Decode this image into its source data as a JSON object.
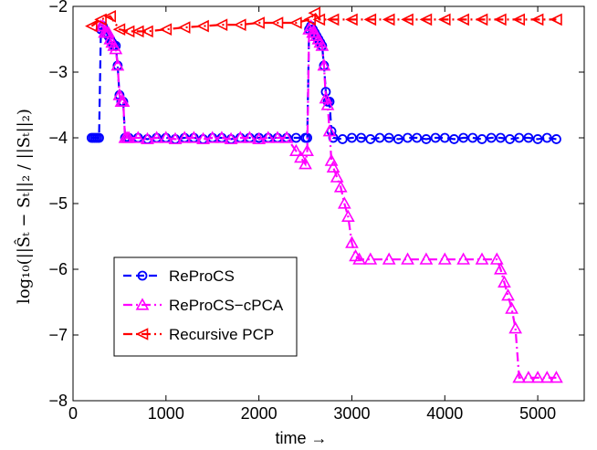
{
  "chart_data": {
    "type": "line",
    "xlabel": "time →",
    "ylabel": "log₁₀(||Ŝₜ − Sₜ||₂ / ||Sₜ||₂)",
    "xlim": [
      0,
      5500
    ],
    "ylim": [
      -8,
      -2
    ],
    "xticks": [
      "0",
      "1000",
      "2000",
      "3000",
      "4000",
      "5000"
    ],
    "yticks": [
      "−2",
      "−3",
      "−4",
      "−5",
      "−6",
      "−7",
      "−8"
    ],
    "grid": false,
    "legend_position": "lower-left",
    "series": [
      {
        "name": "ReProCS",
        "color": "#0000ff",
        "line_style": "dashed",
        "marker": "circle",
        "x": [
          200,
          220,
          240,
          260,
          280,
          300,
          320,
          340,
          360,
          380,
          400,
          420,
          440,
          460,
          480,
          500,
          520,
          540,
          560,
          580,
          600,
          700,
          800,
          900,
          1000,
          1100,
          1200,
          1300,
          1400,
          1500,
          1600,
          1700,
          1800,
          1900,
          2000,
          2100,
          2200,
          2300,
          2400,
          2500,
          2520,
          2540,
          2560,
          2580,
          2600,
          2620,
          2640,
          2660,
          2680,
          2700,
          2720,
          2740,
          2760,
          2780,
          2800,
          2900,
          3000,
          3100,
          3200,
          3300,
          3400,
          3500,
          3600,
          3700,
          3800,
          3900,
          4000,
          4100,
          4200,
          4300,
          4400,
          4500,
          4600,
          4700,
          4800,
          4900,
          5000,
          5100,
          5200
        ],
        "y": [
          -4.0,
          -4.0,
          -4.0,
          -4.0,
          -4.0,
          -2.35,
          -2.3,
          -2.4,
          -2.4,
          -2.45,
          -2.5,
          -2.55,
          -2.6,
          -2.6,
          -2.9,
          -3.35,
          -3.45,
          -3.45,
          -4.0,
          -4.0,
          -4.0,
          -4.0,
          -4.02,
          -4.0,
          -4.0,
          -4.02,
          -4.0,
          -4.0,
          -4.02,
          -4.0,
          -4.0,
          -4.02,
          -4.0,
          -4.0,
          -4.0,
          -4.0,
          -4.0,
          -4.0,
          -4.0,
          -4.0,
          -4.0,
          -2.35,
          -2.3,
          -2.35,
          -2.4,
          -2.45,
          -2.5,
          -2.55,
          -2.6,
          -2.9,
          -3.3,
          -3.45,
          -3.45,
          -3.9,
          -4.0,
          -4.02,
          -4.0,
          -4.0,
          -4.02,
          -4.0,
          -4.0,
          -4.02,
          -4.0,
          -4.0,
          -4.02,
          -4.0,
          -4.0,
          -4.02,
          -4.0,
          -4.0,
          -4.02,
          -4.0,
          -4.0,
          -4.02,
          -4.0,
          -4.0,
          -4.02,
          -4.0,
          -4.02
        ]
      },
      {
        "name": "ReProCS−cPCA",
        "color": "#ff00ff",
        "line_style": "dashdot",
        "marker": "triangle",
        "x": [
          300,
          320,
          340,
          360,
          380,
          400,
          420,
          440,
          460,
          480,
          500,
          520,
          540,
          560,
          580,
          600,
          700,
          800,
          900,
          1000,
          1100,
          1200,
          1300,
          1400,
          1500,
          1600,
          1700,
          1800,
          1900,
          2000,
          2100,
          2200,
          2300,
          2400,
          2450,
          2500,
          2520,
          2540,
          2560,
          2580,
          2600,
          2620,
          2640,
          2660,
          2680,
          2700,
          2720,
          2740,
          2760,
          2780,
          2800,
          2840,
          2880,
          2920,
          2960,
          3000,
          3040,
          3080,
          3200,
          3400,
          3600,
          3800,
          4000,
          4200,
          4400,
          4560,
          4600,
          4640,
          4680,
          4720,
          4760,
          4800,
          4900,
          5000,
          5100,
          5200
        ],
        "y": [
          -2.3,
          -2.3,
          -2.4,
          -2.4,
          -2.4,
          -2.5,
          -2.55,
          -2.6,
          -2.65,
          -2.9,
          -3.35,
          -3.45,
          -3.45,
          -4.0,
          -4.0,
          -4.0,
          -4.0,
          -4.02,
          -4.0,
          -4.0,
          -4.02,
          -4.0,
          -4.0,
          -4.02,
          -4.0,
          -4.0,
          -4.02,
          -4.0,
          -4.0,
          -4.02,
          -4.0,
          -4.0,
          -4.0,
          -4.2,
          -4.3,
          -4.4,
          -4.2,
          -2.35,
          -2.3,
          -2.4,
          -2.4,
          -2.45,
          -2.5,
          -2.55,
          -2.6,
          -2.9,
          -3.4,
          -3.5,
          -3.9,
          -4.35,
          -4.45,
          -4.6,
          -4.75,
          -5.0,
          -5.2,
          -5.6,
          -5.8,
          -5.85,
          -5.85,
          -5.85,
          -5.85,
          -5.85,
          -5.85,
          -5.85,
          -5.85,
          -5.85,
          -6.0,
          -6.2,
          -6.4,
          -6.6,
          -6.9,
          -7.65,
          -7.65,
          -7.65,
          -7.65,
          -7.65
        ]
      },
      {
        "name": "Recursive PCP",
        "color": "#ff0000",
        "line_style": "dashdot",
        "marker": "triangle-left",
        "x": [
          200,
          300,
          400,
          500,
          600,
          700,
          800,
          1000,
          1200,
          1400,
          1600,
          1800,
          2000,
          2200,
          2400,
          2550,
          2600,
          2650,
          2800,
          3000,
          3200,
          3400,
          3600,
          3800,
          4000,
          4200,
          4400,
          4600,
          4800,
          5000,
          5200
        ],
        "y": [
          -2.3,
          -2.2,
          -2.15,
          -2.35,
          -2.38,
          -2.38,
          -2.38,
          -2.35,
          -2.32,
          -2.3,
          -2.28,
          -2.28,
          -2.25,
          -2.25,
          -2.25,
          -2.2,
          -2.1,
          -2.2,
          -2.2,
          -2.2,
          -2.2,
          -2.2,
          -2.2,
          -2.2,
          -2.2,
          -2.2,
          -2.2,
          -2.2,
          -2.2,
          -2.2,
          -2.2
        ]
      }
    ]
  }
}
